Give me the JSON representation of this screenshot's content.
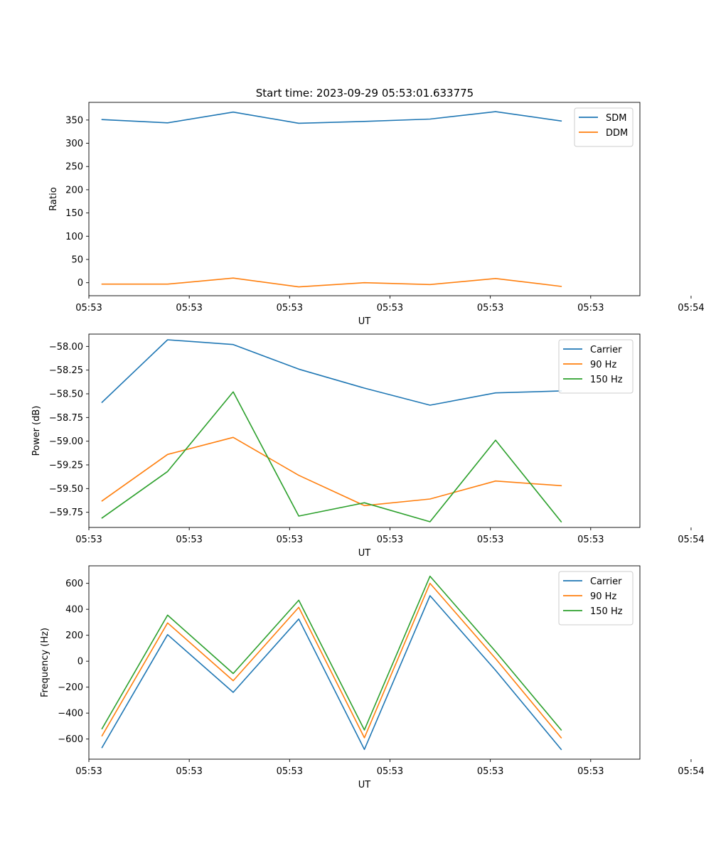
{
  "figure": {
    "title": "Start time: 2023-09-29 05:53:01.633775"
  },
  "chart_data": [
    {
      "type": "line",
      "title": "Start time: 2023-09-29 05:53:01.633775",
      "xlabel": "UT",
      "ylabel": "Ratio",
      "x": [
        1,
        2,
        3,
        4,
        5,
        6,
        7,
        8
      ],
      "xlim": [
        0.8,
        9.2
      ],
      "x_ticks": [
        0.8,
        2.33,
        3.86,
        5.39,
        6.92,
        8.45,
        9.98
      ],
      "x_tick_labels": [
        "05:53",
        "05:53",
        "05:53",
        "05:53",
        "05:53",
        "05:53",
        "05:54"
      ],
      "ylim": [
        -28,
        388
      ],
      "y_ticks": [
        0,
        50,
        100,
        150,
        200,
        250,
        300,
        350
      ],
      "y_tick_labels": [
        "0",
        "50",
        "100",
        "150",
        "200",
        "250",
        "300",
        "350"
      ],
      "legend": "top-right",
      "series": [
        {
          "name": "SDM",
          "color": "#1f77b4",
          "values": [
            351,
            344,
            367,
            343,
            347,
            352,
            368,
            348
          ]
        },
        {
          "name": "DDM",
          "color": "#ff7f0e",
          "values": [
            -3,
            -3,
            10,
            -9,
            0,
            -4,
            9,
            -8
          ]
        }
      ]
    },
    {
      "type": "line",
      "title": "",
      "xlabel": "UT",
      "ylabel": "Power (dB)",
      "x": [
        1,
        2,
        3,
        4,
        5,
        6,
        7,
        8
      ],
      "xlim": [
        0.8,
        9.2
      ],
      "x_ticks": [
        0.8,
        2.33,
        3.86,
        5.39,
        6.92,
        8.45,
        9.98
      ],
      "x_tick_labels": [
        "05:53",
        "05:53",
        "05:53",
        "05:53",
        "05:53",
        "05:53",
        "05:54"
      ],
      "ylim": [
        -59.91,
        -57.87
      ],
      "y_ticks": [
        -58.0,
        -58.25,
        -58.5,
        -58.75,
        -59.0,
        -59.25,
        -59.5,
        -59.75
      ],
      "y_tick_labels": [
        "−58.00",
        "−58.25",
        "−58.50",
        "−58.75",
        "−59.00",
        "−59.25",
        "−59.50",
        "−59.75"
      ],
      "legend": "top-right",
      "series": [
        {
          "name": "Carrier",
          "color": "#1f77b4",
          "values": [
            -58.59,
            -57.93,
            -57.98,
            -58.24,
            -58.44,
            -58.62,
            -58.49,
            -58.47
          ]
        },
        {
          "name": "90 Hz",
          "color": "#ff7f0e",
          "values": [
            -59.63,
            -59.14,
            -58.96,
            -59.36,
            -59.68,
            -59.61,
            -59.42,
            -59.47
          ]
        },
        {
          "name": "150 Hz",
          "color": "#2ca02c",
          "values": [
            -59.81,
            -59.32,
            -58.48,
            -59.79,
            -59.65,
            -59.85,
            -58.99,
            -59.85
          ]
        }
      ]
    },
    {
      "type": "line",
      "title": "",
      "xlabel": "UT",
      "ylabel": "Frequency (Hz)",
      "x": [
        1,
        2,
        3,
        4,
        5,
        6,
        7,
        8
      ],
      "xlim": [
        0.8,
        9.2
      ],
      "x_ticks": [
        0.8,
        2.33,
        3.86,
        5.39,
        6.92,
        8.45,
        9.98
      ],
      "x_tick_labels": [
        "05:53",
        "05:53",
        "05:53",
        "05:53",
        "05:53",
        "05:53",
        "05:54"
      ],
      "ylim": [
        -755,
        735
      ],
      "y_ticks": [
        600,
        400,
        200,
        0,
        -200,
        -400,
        -600
      ],
      "y_tick_labels": [
        "600",
        "400",
        "200",
        "0",
        "−200",
        "−400",
        "−600"
      ],
      "legend": "top-right",
      "series": [
        {
          "name": "Carrier",
          "color": "#1f77b4",
          "values": [
            -665,
            205,
            -240,
            325,
            -680,
            505,
            -70,
            -680
          ]
        },
        {
          "name": "90 Hz",
          "color": "#ff7f0e",
          "values": [
            -575,
            295,
            -150,
            415,
            -590,
            600,
            20,
            -590
          ]
        },
        {
          "name": "150 Hz",
          "color": "#2ca02c",
          "values": [
            -520,
            355,
            -95,
            470,
            -530,
            655,
            75,
            -530
          ]
        }
      ]
    }
  ]
}
